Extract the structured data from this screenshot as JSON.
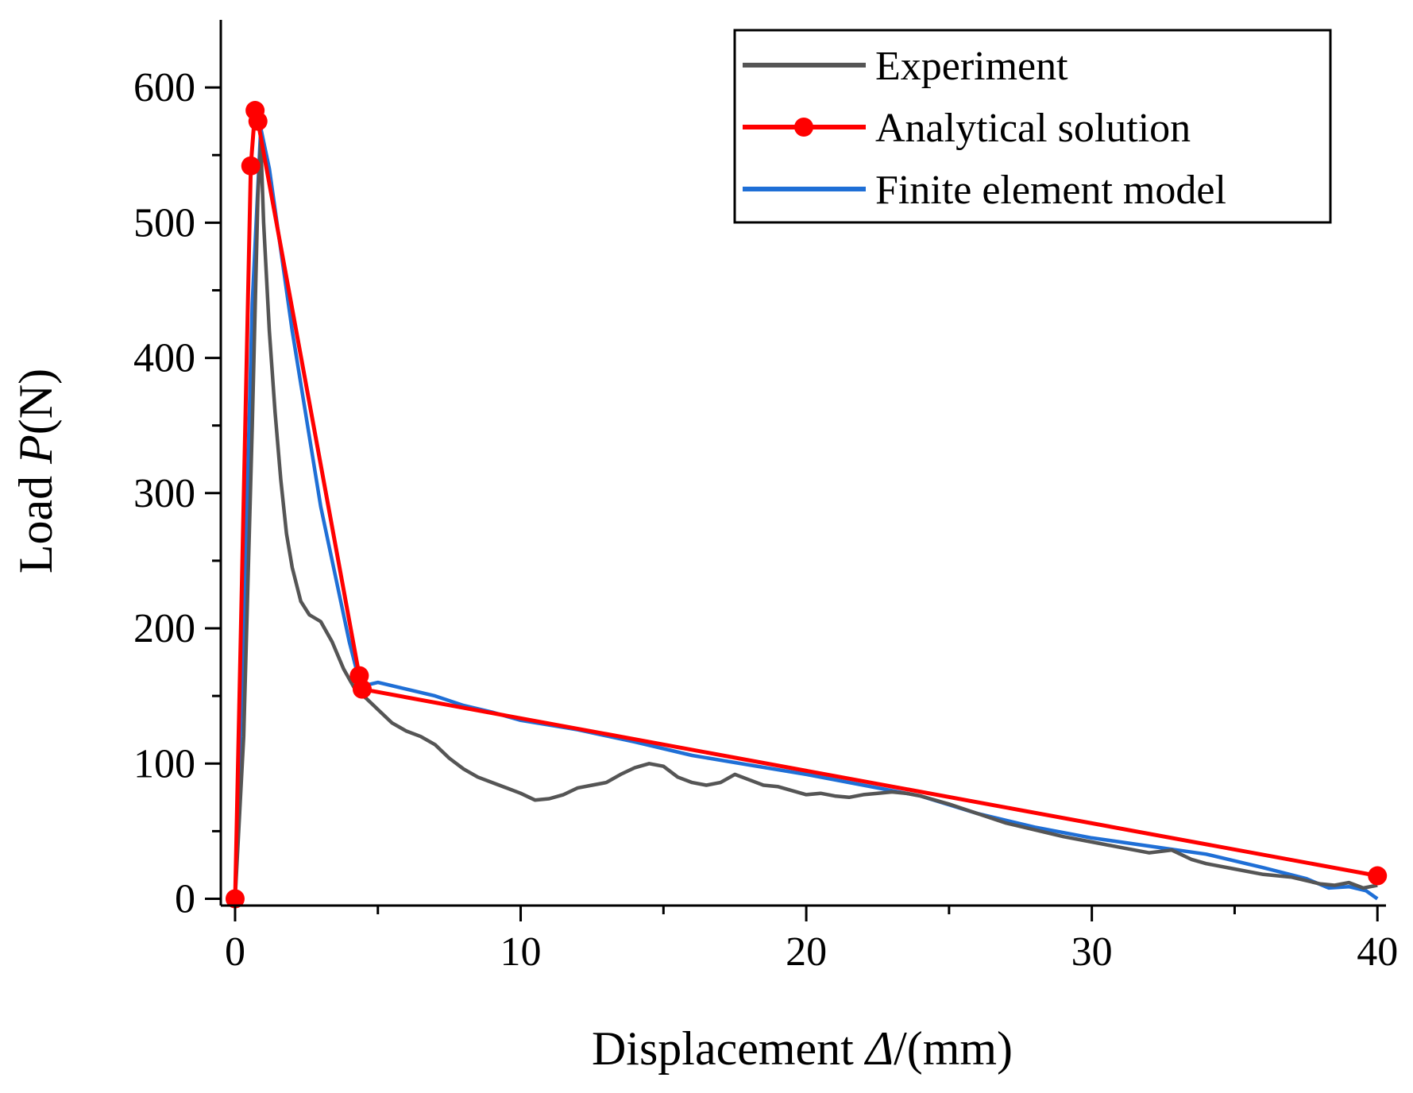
{
  "chart_data": {
    "type": "line",
    "title": "",
    "xlabel_parts": [
      "Displacement ",
      "Δ",
      "/(mm)"
    ],
    "ylabel_parts": [
      "Load ",
      "P",
      "(N)"
    ],
    "xlim": [
      -0.5,
      40.3
    ],
    "ylim": [
      -5,
      650
    ],
    "x_ticks": [
      0,
      10,
      20,
      30,
      40
    ],
    "y_ticks": [
      0,
      100,
      200,
      300,
      400,
      500,
      600
    ],
    "x_minor_step": 5,
    "y_minor_step": 50,
    "grid": false,
    "legend_position": "top-right",
    "series": [
      {
        "name": "Experiment",
        "color": "#555555",
        "marker": false,
        "x": [
          0,
          0.3,
          0.6,
          0.8,
          0.9,
          1.0,
          1.2,
          1.4,
          1.6,
          1.8,
          2.0,
          2.3,
          2.6,
          3.0,
          3.4,
          3.8,
          4.2,
          4.6,
          5.0,
          5.5,
          6.0,
          6.5,
          7.0,
          7.5,
          8.0,
          8.5,
          9.0,
          9.5,
          10.0,
          10.5,
          11.0,
          11.5,
          12.0,
          12.5,
          13.0,
          13.5,
          14.0,
          14.5,
          15.0,
          15.5,
          16.0,
          16.5,
          17.0,
          17.5,
          18.0,
          18.5,
          19.0,
          19.5,
          20.0,
          20.5,
          21.0,
          21.5,
          22.0,
          22.5,
          23.0,
          23.5,
          24.0,
          25.0,
          26.0,
          27.0,
          28.0,
          29.0,
          30.0,
          31.0,
          32.0,
          32.8,
          33.5,
          34.0,
          35.0,
          36.0,
          37.0,
          38.0,
          38.5,
          39.0,
          39.5,
          40.0
        ],
        "y": [
          0,
          120,
          350,
          520,
          560,
          500,
          420,
          360,
          310,
          270,
          245,
          220,
          210,
          205,
          190,
          170,
          155,
          148,
          140,
          130,
          124,
          120,
          114,
          104,
          96,
          90,
          86,
          82,
          78,
          73,
          74,
          77,
          82,
          84,
          86,
          92,
          97,
          100,
          98,
          90,
          86,
          84,
          86,
          92,
          88,
          84,
          83,
          80,
          77,
          78,
          76,
          75,
          77,
          78,
          79,
          78,
          76,
          70,
          63,
          56,
          51,
          46,
          42,
          38,
          34,
          36,
          29,
          26,
          22,
          18,
          16,
          11,
          10,
          12,
          8,
          10
        ]
      },
      {
        "name": "Analytical solution",
        "color": "#ff0000",
        "marker": true,
        "x": [
          0,
          0.55,
          0.7,
          0.8,
          4.35,
          4.45,
          40
        ],
        "y": [
          0,
          542,
          583,
          575,
          165,
          155,
          17
        ]
      },
      {
        "name": "Finite element model",
        "color": "#1f6fd6",
        "marker": false,
        "x": [
          0,
          0.3,
          0.6,
          0.9,
          1.2,
          2.0,
          3.0,
          4.0,
          4.4,
          5.0,
          6.0,
          7.0,
          8.0,
          9.0,
          10.0,
          12.0,
          14.0,
          16.0,
          18.0,
          20.0,
          22.0,
          24.0,
          26.0,
          28.0,
          30.0,
          32.0,
          34.0,
          36.0,
          37.5,
          38.3,
          39.0,
          39.6,
          40.0
        ],
        "y": [
          0,
          200,
          440,
          570,
          540,
          420,
          290,
          190,
          157,
          160,
          155,
          150,
          143,
          138,
          132,
          125,
          116,
          106,
          99,
          92,
          84,
          76,
          63,
          53,
          45,
          39,
          33,
          23,
          15,
          8,
          9,
          6,
          0
        ]
      }
    ]
  }
}
